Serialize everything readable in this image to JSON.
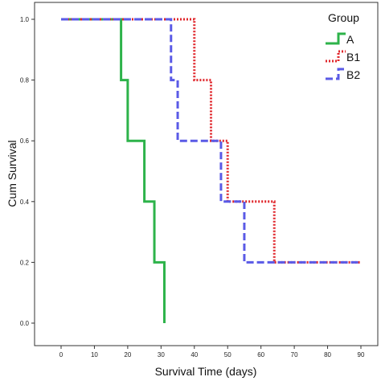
{
  "chart_data": {
    "type": "line",
    "subtype": "step",
    "xlabel": "Survival Time (days)",
    "ylabel": "Cum Survival",
    "xlim": [
      0,
      90
    ],
    "ylim": [
      0,
      1.0
    ],
    "xticks": [
      "0",
      "10",
      "20",
      "30",
      "40",
      "50",
      "60",
      "70",
      "80",
      "90"
    ],
    "yticks": [
      "0.0",
      "0.2",
      "0.4",
      "0.6",
      "0.8",
      "1.0"
    ],
    "grid": false,
    "legend": {
      "title": "Group",
      "placement": "top-right"
    },
    "series": [
      {
        "name": "A",
        "color": "#2db34a",
        "style": "solid",
        "x": [
          0,
          18,
          20,
          25,
          28,
          31
        ],
        "y": [
          1.0,
          0.8,
          0.6,
          0.4,
          0.2,
          0.0
        ]
      },
      {
        "name": "B1",
        "color": "#e0262b",
        "style": "dotted",
        "x": [
          0,
          40,
          45,
          50,
          64,
          90
        ],
        "y": [
          1.0,
          0.8,
          0.6,
          0.4,
          0.2,
          0.2
        ]
      },
      {
        "name": "B2",
        "color": "#5a5ae6",
        "style": "dashed",
        "x": [
          0,
          33,
          35,
          48,
          55,
          90
        ],
        "y": [
          1.0,
          0.8,
          0.6,
          0.4,
          0.2,
          0.2
        ]
      }
    ]
  }
}
